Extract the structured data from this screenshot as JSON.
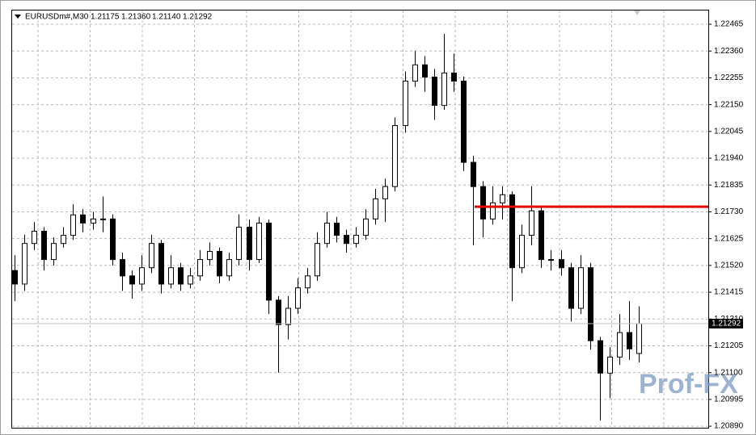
{
  "chart_data": {
    "type": "candlestick",
    "symbol": "EURUSDm#,M30",
    "quote": [
      "1.21175",
      "1.21360",
      "1.21140",
      "1.21292"
    ],
    "watermark": "Prof-FX",
    "grid": true,
    "up_color": "#ffffff",
    "down_color": "#000000",
    "level_color": "#e00000",
    "ylim": [
      1.20884,
      1.22522
    ],
    "yticks": [
      {
        "value": 1.22465,
        "label": "1.22465"
      },
      {
        "value": 1.2236,
        "label": "1.22360"
      },
      {
        "value": 1.22255,
        "label": "1.22255"
      },
      {
        "value": 1.2215,
        "label": "1.22150"
      },
      {
        "value": 1.22045,
        "label": "1.22045"
      },
      {
        "value": 1.2194,
        "label": "1.21940"
      },
      {
        "value": 1.21835,
        "label": "1.21835"
      },
      {
        "value": 1.2173,
        "label": "1.21730"
      },
      {
        "value": 1.21625,
        "label": "1.21625"
      },
      {
        "value": 1.2152,
        "label": "1.21520"
      },
      {
        "value": 1.21415,
        "label": "1.21415"
      },
      {
        "value": 1.2131,
        "label": "1.21310"
      },
      {
        "value": 1.21205,
        "label": "1.21205"
      },
      {
        "value": 1.211,
        "label": "1.21100"
      },
      {
        "value": 1.20995,
        "label": "1.20995"
      },
      {
        "value": 1.2089,
        "label": "1.20890"
      }
    ],
    "current_price": {
      "value": 1.21292,
      "label": "1.21292"
    },
    "level": 1.2175,
    "open": [
      1.215,
      1.21447,
      1.21606,
      1.21654,
      1.21543,
      1.21606,
      1.21638,
      1.21718,
      1.21686,
      1.21702,
      1.21702,
      1.21543,
      1.21479,
      1.21447,
      1.21511,
      1.21606,
      1.21447,
      1.21511,
      1.21447,
      1.21479,
      1.21543,
      1.21575,
      1.21479,
      1.21543,
      1.2167,
      1.21543,
      1.21686,
      1.21384,
      1.21288,
      1.21352,
      1.21432,
      1.21479,
      1.21606,
      1.21686,
      1.21638,
      1.21606,
      1.21638,
      1.21702,
      1.21781,
      1.21829,
      1.22068,
      1.22242,
      1.22306,
      1.22258,
      1.22147,
      1.22274,
      1.22242,
      1.21924,
      1.21829,
      1.21702,
      1.21765,
      1.21797,
      1.21511,
      1.21638,
      1.21734,
      1.21543,
      1.21543,
      1.21511,
      1.21352,
      1.21511,
      1.21225,
      1.21098,
      1.21161,
      1.21257,
      1.21175
    ],
    "high": [
      1.2156,
      1.2164,
      1.2169,
      1.2167,
      1.2163,
      1.2167,
      1.2176,
      1.2174,
      1.2173,
      1.2179,
      1.2172,
      1.2157,
      1.215,
      1.2156,
      1.2164,
      1.2162,
      1.2156,
      1.2153,
      1.2151,
      1.2158,
      1.2161,
      1.2159,
      1.2157,
      1.2172,
      1.217,
      1.2171,
      1.217,
      1.214,
      1.214,
      1.2147,
      1.2151,
      1.2165,
      1.2173,
      1.2171,
      1.2166,
      1.2167,
      1.2174,
      1.2182,
      1.2186,
      1.221,
      1.2228,
      1.2236,
      1.2234,
      1.2229,
      1.22427,
      1.2235,
      1.2226,
      1.2195,
      1.2185,
      1.2183,
      1.2183,
      1.2181,
      1.2168,
      1.2183,
      1.2175,
      1.2158,
      1.2158,
      1.2153,
      1.2156,
      1.2153,
      1.2124,
      1.212,
      1.2133,
      1.2138,
      1.2136
    ],
    "low": [
      1.2138,
      1.2142,
      1.2158,
      1.215,
      1.2152,
      1.2159,
      1.2162,
      1.2165,
      1.2166,
      1.2165,
      1.2152,
      1.2142,
      1.2139,
      1.2142,
      1.2149,
      1.2141,
      1.2143,
      1.2142,
      1.2143,
      1.2146,
      1.2152,
      1.2145,
      1.2146,
      1.2152,
      1.215,
      1.2153,
      1.2133,
      1.211,
      1.2123,
      1.2133,
      1.2141,
      1.2146,
      1.2159,
      1.2161,
      1.2157,
      1.2159,
      1.2162,
      1.2168,
      1.2169,
      1.2181,
      1.2204,
      1.2222,
      1.222,
      1.2209,
      1.2213,
      1.222,
      1.2189,
      1.216,
      1.2163,
      1.2168,
      1.217,
      1.2138,
      1.2149,
      1.216,
      1.2151,
      1.215,
      1.2148,
      1.213,
      1.2133,
      1.2119,
      1.20913,
      1.21,
      1.2113,
      1.2115,
      1.2114
    ],
    "close": [
      1.21447,
      1.21606,
      1.21654,
      1.21543,
      1.21606,
      1.21638,
      1.21718,
      1.21686,
      1.21702,
      1.21702,
      1.21543,
      1.21479,
      1.21447,
      1.21511,
      1.21606,
      1.21447,
      1.21511,
      1.21447,
      1.21479,
      1.21543,
      1.21575,
      1.21479,
      1.21543,
      1.2167,
      1.21543,
      1.21686,
      1.21384,
      1.21288,
      1.21352,
      1.21432,
      1.21479,
      1.21606,
      1.21686,
      1.21638,
      1.21606,
      1.21638,
      1.21702,
      1.21781,
      1.21829,
      1.22068,
      1.22242,
      1.22306,
      1.22258,
      1.22147,
      1.22274,
      1.22242,
      1.21924,
      1.21829,
      1.21702,
      1.21765,
      1.21797,
      1.21511,
      1.21638,
      1.21734,
      1.21543,
      1.21543,
      1.21511,
      1.21352,
      1.21511,
      1.21225,
      1.21098,
      1.21161,
      1.21257,
      1.21193,
      1.21292
    ]
  }
}
